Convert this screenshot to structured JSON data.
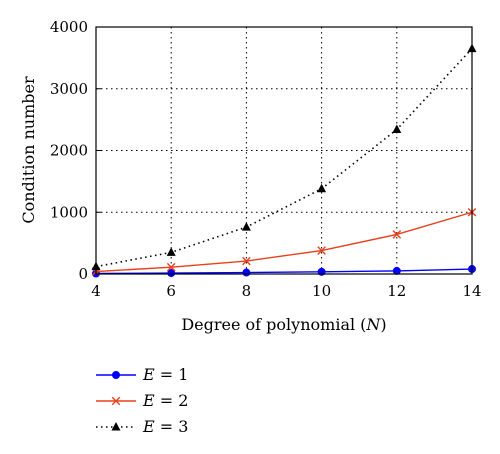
{
  "chart_data": {
    "type": "line",
    "title": "",
    "xlabel": "Degree of polynomial (N)",
    "xlabel_parts": {
      "prefix": "Degree of polynomial (",
      "var": "N",
      "suffix": ")"
    },
    "ylabel": "Condition number",
    "x": [
      4,
      6,
      8,
      10,
      12,
      14
    ],
    "xlim": [
      4,
      14
    ],
    "ylim": [
      0,
      4000
    ],
    "xticks": [
      4,
      6,
      8,
      10,
      12,
      14
    ],
    "yticks": [
      0,
      1000,
      2000,
      3000,
      4000
    ],
    "grid": true,
    "legend_position": "below",
    "series": [
      {
        "name": "E = 1",
        "var": "E",
        "eq": " = 1",
        "color": "#0000ff",
        "line": "solid",
        "marker": "circle",
        "values": [
          8,
          15,
          24,
          35,
          50,
          80
        ]
      },
      {
        "name": "E = 2",
        "var": "E",
        "eq": " = 2",
        "color": "#e8401c",
        "line": "solid",
        "marker": "x",
        "values": [
          40,
          110,
          210,
          380,
          640,
          1000
        ]
      },
      {
        "name": "E = 3",
        "var": "E",
        "eq": " = 3",
        "color": "#000000",
        "line": "dotted",
        "marker": "triangle",
        "values": [
          120,
          350,
          760,
          1380,
          2340,
          3650
        ]
      }
    ]
  }
}
